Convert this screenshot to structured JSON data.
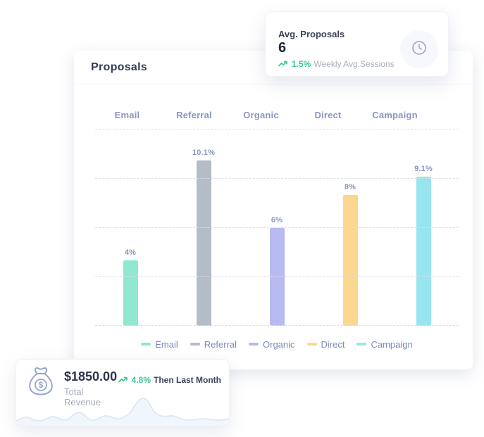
{
  "main_card": {
    "title": "Proposals"
  },
  "top_card": {
    "title": "Avg. Proposals",
    "value": "6",
    "trend_value": "1.5%",
    "trend_caption": "Weekly Avg.Sessions",
    "icon": "clock-icon"
  },
  "chart_data": {
    "type": "bar",
    "title": "Proposals",
    "categories": [
      "Email",
      "Referral",
      "Organic",
      "Direct",
      "Campaign"
    ],
    "values": [
      4,
      10.1,
      6,
      8,
      9.1
    ],
    "value_labels": [
      "4%",
      "10.1%",
      "6%",
      "8%",
      "9.1%"
    ],
    "bar_colors": [
      "#8fe8cf",
      "#b4bdc6",
      "#b7bbf2",
      "#fbd78f",
      "#97e5ee"
    ],
    "legend": [
      "Email",
      "Referral",
      "Organic",
      "Direct",
      "Campaign"
    ],
    "legend_position": "bottom",
    "xlabel": "",
    "ylabel": "",
    "ylim": [
      0,
      12
    ],
    "gridline_step": 3,
    "grid": true
  },
  "revenue_card": {
    "value": "$1850.00",
    "label": "Total Revenue",
    "trend_value": "4.8%",
    "trend_caption": "Then Last Month",
    "icon": "money-bag-icon"
  },
  "colors": {
    "accent_green": "#34c98e",
    "heading_text": "#363b54",
    "muted_text": "#a8adbe",
    "axis_label": "#8b96c2",
    "gridline": "#dcdfe9",
    "card_background": "#ffffff"
  }
}
